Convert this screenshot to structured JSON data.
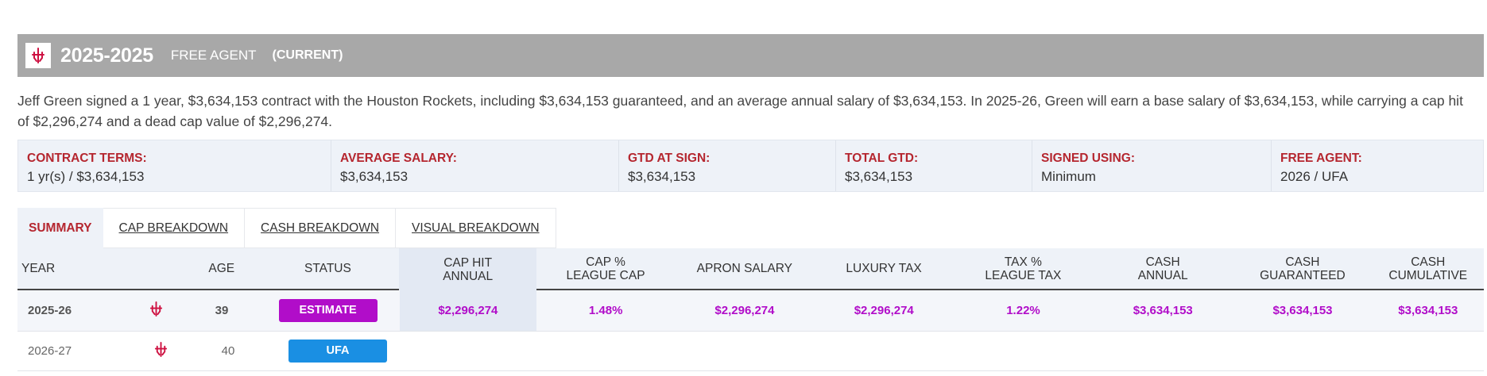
{
  "header": {
    "season": "2025-2025",
    "status": "FREE AGENT",
    "current": "(CURRENT)",
    "team_logo": "rockets-logo-icon"
  },
  "description": "Jeff Green signed a 1 year, $3,634,153 contract with the Houston Rockets, including $3,634,153 guaranteed, and an average annual salary of $3,634,153. In 2025-26, Green will earn a base salary of $3,634,153, while carrying a cap hit of $2,296,274 and a dead cap value of $2,296,274.",
  "terms": [
    {
      "label": "CONTRACT TERMS:",
      "value": "1 yr(s) / $3,634,153"
    },
    {
      "label": "AVERAGE SALARY:",
      "value": "$3,634,153"
    },
    {
      "label": "GTD AT SIGN:",
      "value": "$3,634,153"
    },
    {
      "label": "TOTAL GTD:",
      "value": "$3,634,153"
    },
    {
      "label": "SIGNED USING:",
      "value": "Minimum"
    },
    {
      "label": "FREE AGENT:",
      "value": "2026 / UFA"
    }
  ],
  "tabs": [
    {
      "label": "SUMMARY",
      "active": true
    },
    {
      "label": "CAP BREAKDOWN"
    },
    {
      "label": "CASH BREAKDOWN"
    },
    {
      "label": "VISUAL BREAKDOWN"
    }
  ],
  "table": {
    "columns": {
      "year": "YEAR",
      "age": "AGE",
      "status": "STATUS",
      "cap_hit_1": "CAP HIT",
      "cap_hit_2": "ANNUAL",
      "cap_pct_1": "CAP %",
      "cap_pct_2": "LEAGUE CAP",
      "apron": "APRON SALARY",
      "luxury": "LUXURY TAX",
      "tax_pct_1": "TAX %",
      "tax_pct_2": "LEAGUE TAX",
      "cash_1": "CASH",
      "cash_2": "ANNUAL",
      "gtd_1": "CASH",
      "gtd_2": "GUARANTEED",
      "cum_1": "CASH",
      "cum_2": "CUMULATIVE"
    },
    "rows": [
      {
        "year": "2025-26",
        "age": "39",
        "status": "ESTIMATE",
        "cap_hit": "$2,296,274",
        "cap_pct": "1.48%",
        "apron": "$2,296,274",
        "luxury": "$2,296,274",
        "tax_pct": "1.22%",
        "cash": "$3,634,153",
        "gtd": "$3,634,153",
        "cum": "$3,634,153"
      },
      {
        "year": "2026-27",
        "age": "40",
        "status": "UFA"
      }
    ]
  },
  "colors": {
    "accent_red": "#b5262f",
    "value_purple": "#b10dc9",
    "estimate_badge": "#b10dc9",
    "ufa_badge": "#1a8fe3",
    "header_bg": "#a8a8a8"
  }
}
